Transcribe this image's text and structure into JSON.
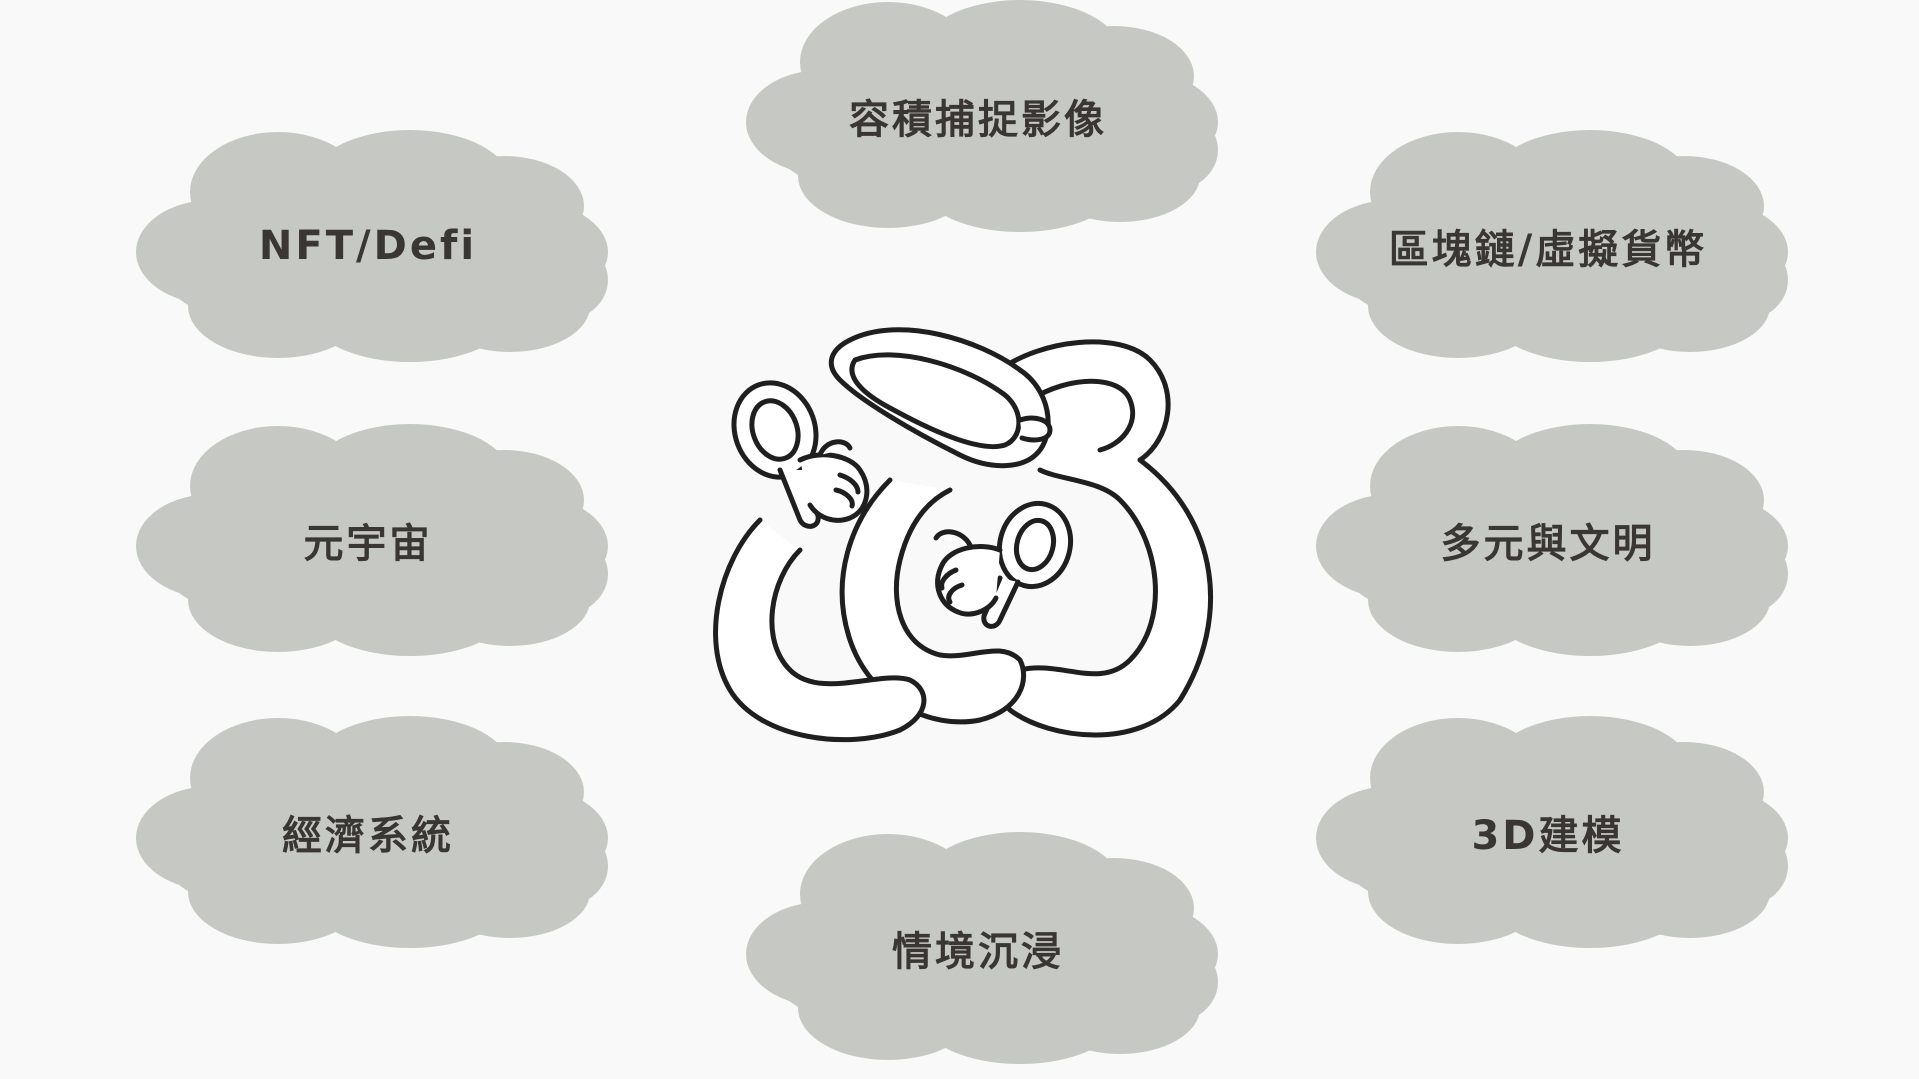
{
  "background_color": "#f9f9f9",
  "cloud_color": "#c6c9c3",
  "text_color": "#3a3633",
  "central_illustration": {
    "icon": "vr-headset-with-controllers-icon"
  },
  "clouds": {
    "top": "容積捕捉影像",
    "left_1": "NFT/Defi",
    "right_1": "區塊鏈/虛擬貨幣",
    "left_2": "元宇宙",
    "right_2": "多元與文明",
    "left_3": "經濟系統",
    "right_3": "3D建模",
    "bottom": "情境沉浸"
  }
}
